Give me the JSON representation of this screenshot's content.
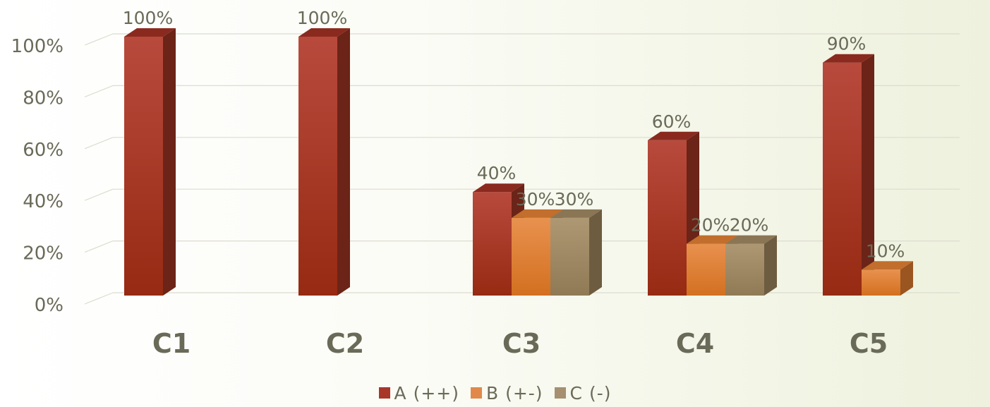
{
  "chart_data": {
    "type": "bar",
    "categories": [
      "C1",
      "C2",
      "C3",
      "C4",
      "C5"
    ],
    "series": [
      {
        "name": "A (++)",
        "values": [
          100,
          100,
          40,
          60,
          90
        ],
        "labels": [
          "100%",
          "100%",
          "40%",
          "60%",
          "90%"
        ],
        "color": "#b0473a"
      },
      {
        "name": "B (+-)",
        "values": [
          null,
          null,
          30,
          20,
          10
        ],
        "labels": [
          "",
          "",
          "30%",
          "20%",
          "10%"
        ],
        "color": "#e0894a"
      },
      {
        "name": "C (-)",
        "values": [
          null,
          null,
          30,
          20,
          null
        ],
        "labels": [
          "",
          "",
          "30%",
          "20%",
          ""
        ],
        "color": "#a69070"
      }
    ],
    "y_ticks": [
      "0%",
      "20%",
      "40%",
      "60%",
      "80%",
      "100%"
    ],
    "ylim": [
      0,
      100
    ],
    "grid": true,
    "legend_position": "bottom",
    "three_d": true
  }
}
